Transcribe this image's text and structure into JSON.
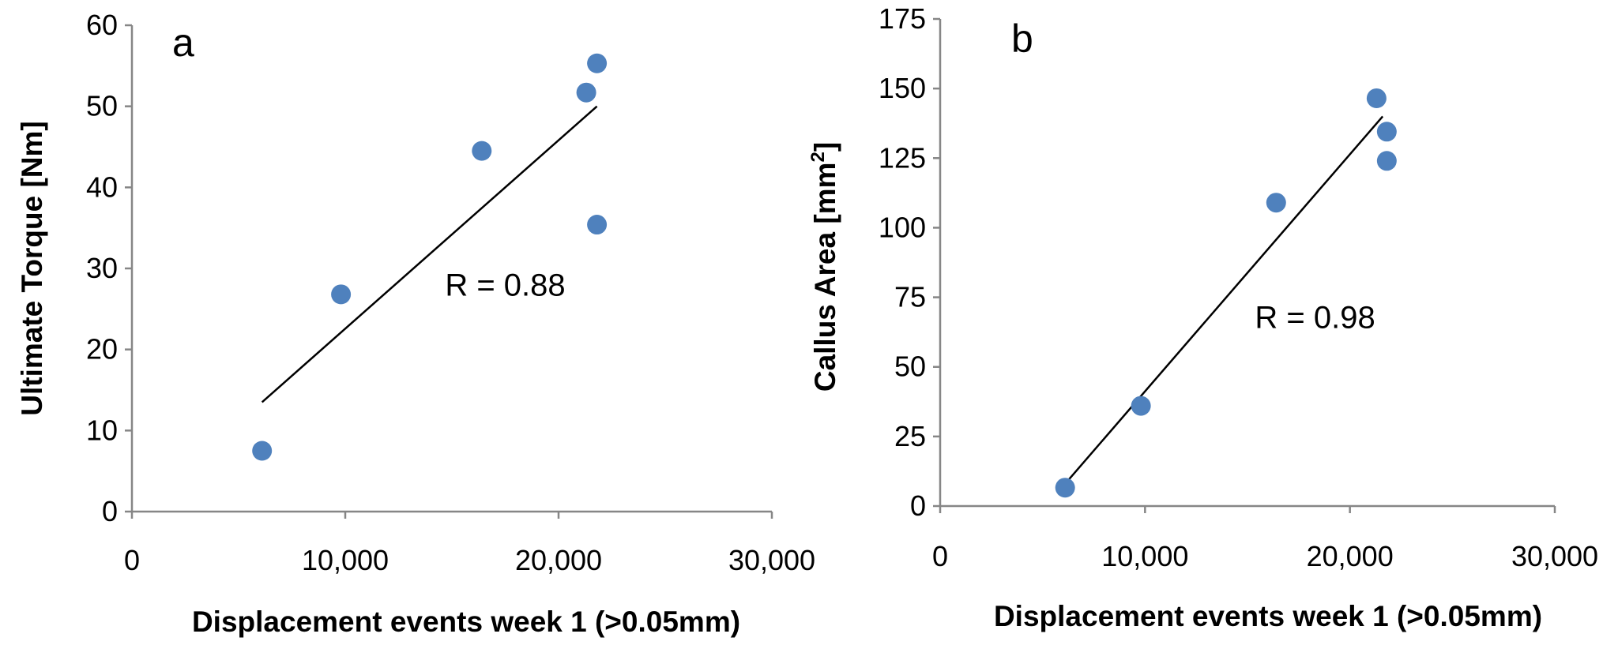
{
  "chart_data": [
    {
      "type": "scatter",
      "panel_label": "a",
      "xlabel": "Displacement events week 1 (>0.05mm)",
      "ylabel": "Ultimate Torque [Nm]",
      "xlim": [
        0,
        30000
      ],
      "ylim": [
        0,
        60
      ],
      "xticks": [
        0,
        10000,
        20000,
        30000
      ],
      "xtick_labels": [
        "0",
        "10,000",
        "20,000",
        "30,000"
      ],
      "yticks": [
        0,
        10,
        20,
        30,
        40,
        50,
        60
      ],
      "ytick_labels": [
        "0",
        "10",
        "20",
        "30",
        "40",
        "50",
        "60"
      ],
      "grid": false,
      "marker_color": "#4f81bd",
      "line_color": "#000000",
      "points": [
        {
          "x": 6100,
          "y": 7.5
        },
        {
          "x": 9800,
          "y": 26.8
        },
        {
          "x": 16400,
          "y": 44.5
        },
        {
          "x": 21300,
          "y": 51.7
        },
        {
          "x": 21800,
          "y": 55.3
        },
        {
          "x": 21800,
          "y": 35.4
        }
      ],
      "trendline": {
        "x": [
          6100,
          21800
        ],
        "y": [
          13.5,
          50.0
        ]
      },
      "annotation": {
        "text": "R = 0.88",
        "x": 17500,
        "y": 28
      }
    },
    {
      "type": "scatter",
      "panel_label": "b",
      "xlabel": "Displacement events week 1 (>0.05mm)",
      "ylabel_main": "Callus Area [mm",
      "ylabel_sup": "2",
      "ylabel_end": "]",
      "xlim": [
        0,
        30000
      ],
      "ylim": [
        0,
        175
      ],
      "xticks": [
        0,
        10000,
        20000,
        30000
      ],
      "xtick_labels": [
        "0",
        "10,000",
        "20,000",
        "30,000"
      ],
      "yticks": [
        0,
        25,
        50,
        75,
        100,
        125,
        150,
        175
      ],
      "ytick_labels": [
        "0",
        "25",
        "50",
        "75",
        "100",
        "125",
        "150",
        "175"
      ],
      "grid": false,
      "marker_color": "#4f81bd",
      "line_color": "#000000",
      "points": [
        {
          "x": 6100,
          "y": 6.6
        },
        {
          "x": 9800,
          "y": 36
        },
        {
          "x": 16400,
          "y": 109
        },
        {
          "x": 21300,
          "y": 146.5
        },
        {
          "x": 21800,
          "y": 134.5
        },
        {
          "x": 21800,
          "y": 124
        }
      ],
      "trendline": {
        "x": [
          6100,
          21600
        ],
        "y": [
          8,
          140
        ]
      },
      "annotation": {
        "text": "R = 0.98",
        "x": 18300,
        "y": 68
      }
    }
  ]
}
